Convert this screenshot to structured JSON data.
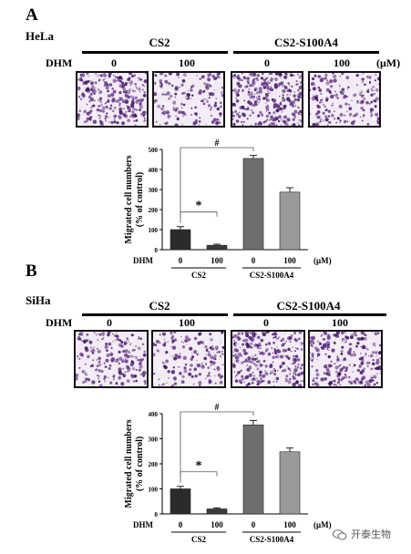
{
  "panels": [
    {
      "letter": "A",
      "cell_line": "HeLa",
      "groups": [
        "CS2",
        "CS2-S100A4"
      ],
      "treatment_label": "DHM",
      "doses": [
        "0",
        "100",
        "0",
        "100"
      ],
      "unit": "(μM)",
      "micrograph_density": [
        0.85,
        0.35,
        0.95,
        0.45
      ],
      "chart": {
        "ylabel_line1": "Migrated cell numbers",
        "ylabel_line2": "(% of control)",
        "sig_star": "*",
        "sig_hash": "#"
      }
    },
    {
      "letter": "B",
      "cell_line": "SiHa",
      "groups": [
        "CS2",
        "CS2-S100A4"
      ],
      "treatment_label": "DHM",
      "doses": [
        "0",
        "100",
        "0",
        "100"
      ],
      "unit": "(μM)",
      "micrograph_density": [
        0.55,
        0.35,
        0.85,
        0.7
      ],
      "chart": {
        "ylabel_line1": "Migrated cell numbers",
        "ylabel_line2": "(% of control)",
        "sig_star": "*",
        "sig_hash": "#"
      }
    }
  ],
  "chart_data": [
    {
      "type": "bar",
      "categories": [
        "CS2 DHM 0",
        "CS2 DHM 100",
        "CS2-S100A4 DHM 0",
        "CS2-S100A4 DHM 100"
      ],
      "values": [
        100,
        22,
        455,
        287
      ],
      "errors": [
        15,
        5,
        15,
        22
      ],
      "ylim": [
        0,
        500
      ],
      "yticks": [
        0,
        100,
        200,
        300,
        400,
        500
      ],
      "bar_colors": [
        "#2b2b2b",
        "#3a3a3a",
        "#6e6e6e",
        "#9a9a9a"
      ],
      "x_treatment_label": "DHM",
      "x_doses": [
        "0",
        "100",
        "0",
        "100"
      ],
      "x_unit": "(μM)",
      "x_groups": [
        "CS2",
        "CS2-S100A4"
      ]
    },
    {
      "type": "bar",
      "categories": [
        "CS2 DHM 0",
        "CS2 DHM 100",
        "CS2-S100A4 DHM 0",
        "CS2-S100A4 DHM 100"
      ],
      "values": [
        100,
        20,
        355,
        248
      ],
      "errors": [
        10,
        4,
        18,
        15
      ],
      "ylim": [
        0,
        400
      ],
      "yticks": [
        0,
        100,
        200,
        300,
        400
      ],
      "bar_colors": [
        "#2b2b2b",
        "#3a3a3a",
        "#6e6e6e",
        "#9a9a9a"
      ],
      "x_treatment_label": "DHM",
      "x_doses": [
        "0",
        "100",
        "0",
        "100"
      ],
      "x_unit": "(μM)",
      "x_groups": [
        "CS2",
        "CS2-S100A4"
      ]
    }
  ],
  "watermark": {
    "text": "开泰生物",
    "icon": "wechat-icon"
  }
}
